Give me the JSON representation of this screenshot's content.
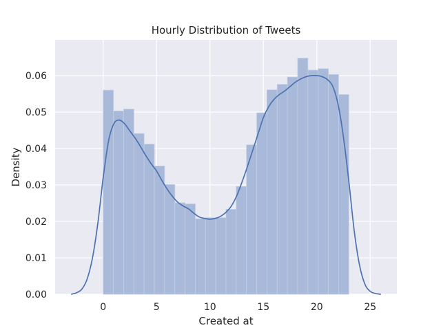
{
  "chart_data": {
    "type": "bar",
    "title": "Hourly Distribution of Tweets",
    "xlabel": "Created at",
    "ylabel": "Density",
    "xlim": [
      -4.5,
      27.5
    ],
    "ylim": [
      0,
      0.0698
    ],
    "xticks": [
      0,
      5,
      10,
      15,
      20,
      25
    ],
    "yticks": [
      0.0,
      0.01,
      0.02,
      0.03,
      0.04,
      0.05,
      0.06
    ],
    "ytick_labels": [
      "0.00",
      "0.01",
      "0.02",
      "0.03",
      "0.04",
      "0.05",
      "0.06"
    ],
    "grid": true,
    "legend": "none",
    "colors": {
      "background": "#EAEAF2",
      "grid": "#FFFFFF",
      "bar_fill": "#A8B9D9",
      "bar_edge": "#C3CEE5",
      "kde_line": "#4C72B0"
    },
    "bins": {
      "edges": [
        0,
        0.958,
        1.917,
        2.875,
        3.833,
        4.792,
        5.75,
        6.708,
        7.667,
        8.625,
        9.583,
        10.542,
        11.5,
        12.458,
        13.417,
        14.375,
        15.333,
        16.292,
        17.25,
        18.208,
        19.167,
        20.125,
        21.083,
        22.042,
        23.0
      ],
      "values": [
        0.056,
        0.0503,
        0.0508,
        0.0441,
        0.0412,
        0.0352,
        0.0301,
        0.0251,
        0.0248,
        0.0207,
        0.021,
        0.021,
        0.0233,
        0.0296,
        0.041,
        0.0498,
        0.0561,
        0.0576,
        0.0596,
        0.0648,
        0.0615,
        0.0619,
        0.0603,
        0.0548
      ]
    },
    "kde": {
      "x": [
        -3.0,
        -2.5,
        -2.0,
        -1.5,
        -1.0,
        -0.5,
        0.0,
        0.5,
        1.0,
        1.5,
        2.0,
        2.5,
        3.0,
        3.5,
        4.0,
        4.5,
        5.0,
        5.5,
        6.0,
        6.5,
        7.0,
        7.5,
        8.0,
        8.5,
        9.0,
        9.5,
        10.0,
        10.5,
        11.0,
        11.5,
        12.0,
        12.5,
        13.0,
        13.5,
        14.0,
        14.5,
        15.0,
        15.5,
        16.0,
        16.5,
        17.0,
        17.5,
        18.0,
        18.5,
        19.0,
        19.5,
        20.0,
        20.5,
        21.0,
        21.5,
        22.0,
        22.5,
        23.0,
        23.5,
        24.0,
        24.5,
        25.0,
        25.5,
        26.0
      ],
      "y": [
        0.0,
        0.0004,
        0.0014,
        0.0042,
        0.01,
        0.0195,
        0.032,
        0.042,
        0.0468,
        0.0478,
        0.0468,
        0.0448,
        0.0428,
        0.0405,
        0.038,
        0.0358,
        0.0338,
        0.0312,
        0.0288,
        0.0268,
        0.0252,
        0.0242,
        0.0234,
        0.0222,
        0.0212,
        0.0208,
        0.0206,
        0.0208,
        0.0214,
        0.0225,
        0.0242,
        0.027,
        0.0308,
        0.035,
        0.0395,
        0.044,
        0.0485,
        0.0515,
        0.0535,
        0.0548,
        0.0558,
        0.057,
        0.0582,
        0.0591,
        0.0597,
        0.06,
        0.06,
        0.0597,
        0.0589,
        0.057,
        0.052,
        0.043,
        0.031,
        0.0175,
        0.008,
        0.0028,
        0.0008,
        0.0002,
        0.0
      ]
    }
  }
}
